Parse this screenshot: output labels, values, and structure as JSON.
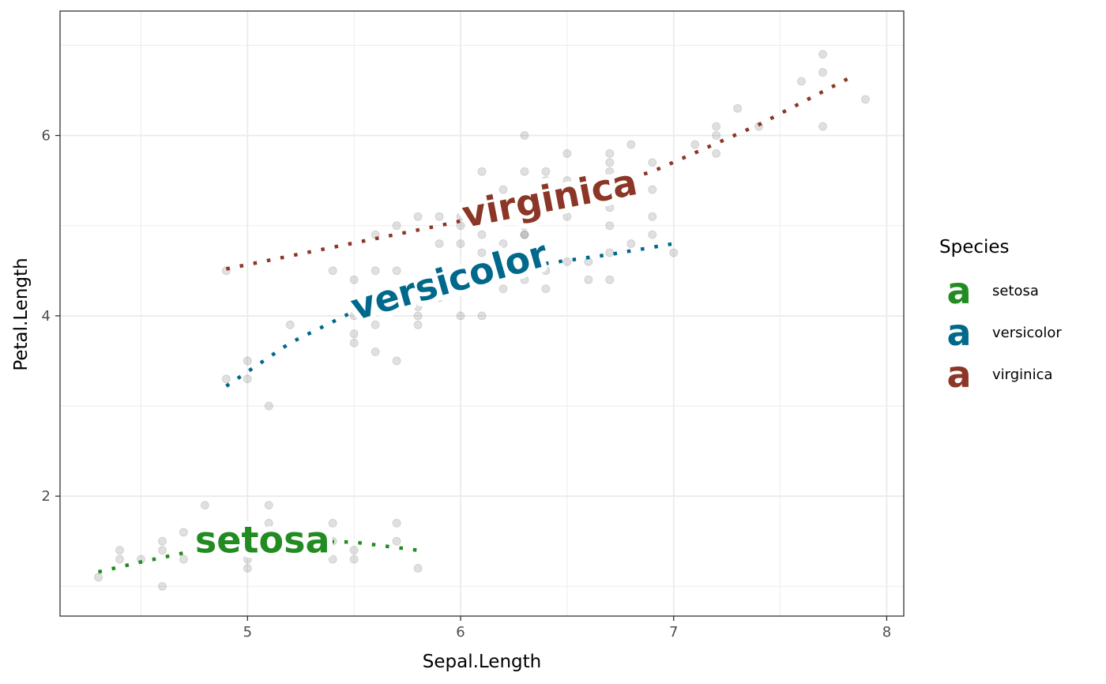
{
  "chart_data": {
    "type": "scatter",
    "xlabel": "Sepal.Length",
    "ylabel": "Petal.Length",
    "xlim": [
      4.12,
      8.08
    ],
    "ylim": [
      0.67,
      7.38
    ],
    "x_ticks": [
      5,
      6,
      7,
      8
    ],
    "y_ticks": [
      2,
      4,
      6
    ],
    "x_tick_labels": [
      "5",
      "6",
      "7",
      "8"
    ],
    "y_tick_labels": [
      "2",
      "4",
      "6"
    ],
    "grid": true,
    "legend_position": "right",
    "legend_title": "Species",
    "points": [
      [
        4.3,
        1.1
      ],
      [
        4.4,
        1.3
      ],
      [
        4.4,
        1.4
      ],
      [
        4.5,
        1.3
      ],
      [
        4.6,
        1.0
      ],
      [
        4.6,
        1.4
      ],
      [
        4.6,
        1.5
      ],
      [
        4.7,
        1.3
      ],
      [
        4.7,
        1.6
      ],
      [
        4.8,
        1.4
      ],
      [
        4.8,
        1.6
      ],
      [
        4.8,
        1.9
      ],
      [
        4.9,
        1.4
      ],
      [
        4.9,
        1.5
      ],
      [
        5.0,
        1.2
      ],
      [
        5.0,
        1.3
      ],
      [
        5.0,
        1.4
      ],
      [
        5.0,
        1.5
      ],
      [
        5.0,
        1.6
      ],
      [
        5.1,
        1.4
      ],
      [
        5.1,
        1.5
      ],
      [
        5.1,
        1.7
      ],
      [
        5.1,
        1.9
      ],
      [
        5.2,
        1.4
      ],
      [
        5.2,
        1.5
      ],
      [
        5.3,
        1.5
      ],
      [
        5.4,
        1.3
      ],
      [
        5.4,
        1.5
      ],
      [
        5.4,
        1.7
      ],
      [
        5.5,
        1.3
      ],
      [
        5.5,
        1.4
      ],
      [
        5.7,
        1.5
      ],
      [
        5.7,
        1.7
      ],
      [
        5.8,
        1.2
      ],
      [
        4.9,
        3.3
      ],
      [
        5.0,
        3.3
      ],
      [
        5.0,
        3.5
      ],
      [
        5.1,
        3.0
      ],
      [
        5.2,
        3.9
      ],
      [
        5.4,
        4.5
      ],
      [
        5.5,
        3.7
      ],
      [
        5.5,
        3.8
      ],
      [
        5.5,
        4.0
      ],
      [
        5.5,
        4.4
      ],
      [
        5.6,
        3.6
      ],
      [
        5.6,
        3.9
      ],
      [
        5.6,
        4.1
      ],
      [
        5.6,
        4.2
      ],
      [
        5.6,
        4.5
      ],
      [
        5.7,
        3.5
      ],
      [
        5.7,
        4.1
      ],
      [
        5.7,
        4.2
      ],
      [
        5.7,
        4.5
      ],
      [
        5.8,
        3.9
      ],
      [
        5.8,
        4.0
      ],
      [
        5.8,
        4.1
      ],
      [
        5.9,
        4.2
      ],
      [
        5.9,
        4.8
      ],
      [
        6.0,
        4.0
      ],
      [
        6.0,
        4.5
      ],
      [
        6.0,
        5.1
      ],
      [
        6.1,
        4.0
      ],
      [
        6.1,
        4.6
      ],
      [
        6.1,
        4.7
      ],
      [
        6.2,
        4.3
      ],
      [
        6.2,
        4.5
      ],
      [
        6.3,
        4.4
      ],
      [
        6.3,
        4.7
      ],
      [
        6.3,
        4.9
      ],
      [
        6.4,
        4.3
      ],
      [
        6.4,
        4.5
      ],
      [
        6.5,
        4.6
      ],
      [
        6.6,
        4.4
      ],
      [
        6.6,
        4.6
      ],
      [
        6.7,
        4.4
      ],
      [
        6.7,
        4.7
      ],
      [
        6.7,
        5.0
      ],
      [
        6.8,
        4.8
      ],
      [
        6.9,
        4.9
      ],
      [
        7.0,
        4.7
      ],
      [
        4.9,
        4.5
      ],
      [
        5.6,
        4.9
      ],
      [
        5.7,
        5.0
      ],
      [
        5.8,
        5.1
      ],
      [
        5.9,
        5.1
      ],
      [
        6.0,
        4.8
      ],
      [
        6.0,
        5.0
      ],
      [
        6.1,
        4.9
      ],
      [
        6.1,
        5.6
      ],
      [
        6.2,
        4.8
      ],
      [
        6.2,
        5.4
      ],
      [
        6.3,
        4.9
      ],
      [
        6.3,
        5.0
      ],
      [
        6.3,
        5.1
      ],
      [
        6.3,
        5.6
      ],
      [
        6.3,
        6.0
      ],
      [
        6.4,
        5.3
      ],
      [
        6.4,
        5.5
      ],
      [
        6.4,
        5.6
      ],
      [
        6.5,
        5.1
      ],
      [
        6.5,
        5.2
      ],
      [
        6.5,
        5.5
      ],
      [
        6.5,
        5.8
      ],
      [
        6.7,
        5.2
      ],
      [
        6.7,
        5.6
      ],
      [
        6.7,
        5.7
      ],
      [
        6.7,
        5.8
      ],
      [
        6.8,
        5.5
      ],
      [
        6.8,
        5.9
      ],
      [
        6.9,
        5.1
      ],
      [
        6.9,
        5.4
      ],
      [
        6.9,
        5.7
      ],
      [
        7.1,
        5.9
      ],
      [
        7.2,
        5.8
      ],
      [
        7.2,
        6.0
      ],
      [
        7.2,
        6.1
      ],
      [
        7.3,
        6.3
      ],
      [
        7.4,
        6.1
      ],
      [
        7.6,
        6.6
      ],
      [
        7.7,
        6.1
      ],
      [
        7.7,
        6.7
      ],
      [
        7.7,
        6.9
      ],
      [
        7.9,
        6.4
      ]
    ],
    "series": [
      {
        "name": "setosa",
        "color": "#228B22",
        "curve": [
          [
            4.3,
            1.16
          ],
          [
            4.5,
            1.27
          ],
          [
            4.7,
            1.37
          ],
          [
            4.9,
            1.44
          ],
          [
            5.1,
            1.49
          ],
          [
            5.3,
            1.5
          ],
          [
            5.5,
            1.49
          ],
          [
            5.8,
            1.4
          ]
        ],
        "label_at": 5.07,
        "label_angle": 0
      },
      {
        "name": "versicolor",
        "color": "#00688B",
        "curve": [
          [
            4.9,
            3.22
          ],
          [
            5.2,
            3.7
          ],
          [
            5.5,
            4.05
          ],
          [
            5.8,
            4.28
          ],
          [
            6.1,
            4.45
          ],
          [
            6.4,
            4.58
          ],
          [
            6.7,
            4.68
          ],
          [
            7.0,
            4.8
          ]
        ],
        "label_at": 5.95,
        "label_angle": -16
      },
      {
        "name": "virginica",
        "color": "#8B3626",
        "curve": [
          [
            4.9,
            4.52
          ],
          [
            5.4,
            4.76
          ],
          [
            5.9,
            5.0
          ],
          [
            6.4,
            5.26
          ],
          [
            6.9,
            5.6
          ],
          [
            7.4,
            6.12
          ],
          [
            7.85,
            6.67
          ]
        ],
        "label_at": 6.42,
        "label_angle": -11
      }
    ]
  }
}
